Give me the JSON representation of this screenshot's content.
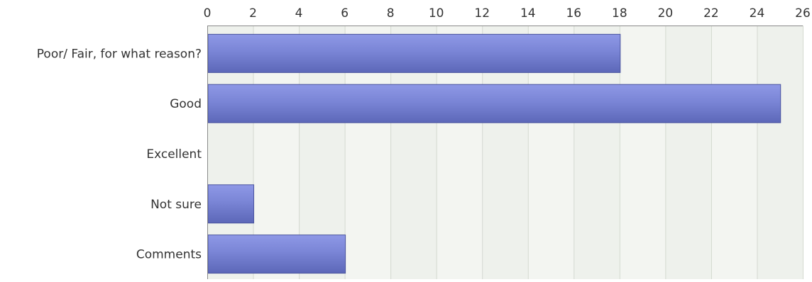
{
  "chart_data": {
    "type": "bar",
    "orientation": "horizontal",
    "categories": [
      "Poor/ Fair, for what reason?",
      "Good",
      "Excellent",
      "Not sure",
      "Comments"
    ],
    "values": [
      18,
      25,
      0,
      2,
      6
    ],
    "x_ticks": [
      "0",
      "2",
      "4",
      "6",
      "8",
      "10",
      "12",
      "14",
      "16",
      "18",
      "20",
      "22",
      "24",
      "26"
    ],
    "xlim": [
      0,
      26
    ],
    "x_axis_position": "top",
    "grid": true,
    "legend": "none",
    "title": "",
    "xlabel": "",
    "ylabel": "",
    "colors": {
      "bar_top": "#8e98e6",
      "bar_mid": "#7a85d6",
      "bar_bottom": "#5c67b8",
      "bar_edge": "#4a549e",
      "plot_bg": "#eef1ec",
      "plot_bg_alt": "#f3f5f1",
      "grid": "#d4d9d0",
      "axis": "#8a8a8a"
    }
  }
}
